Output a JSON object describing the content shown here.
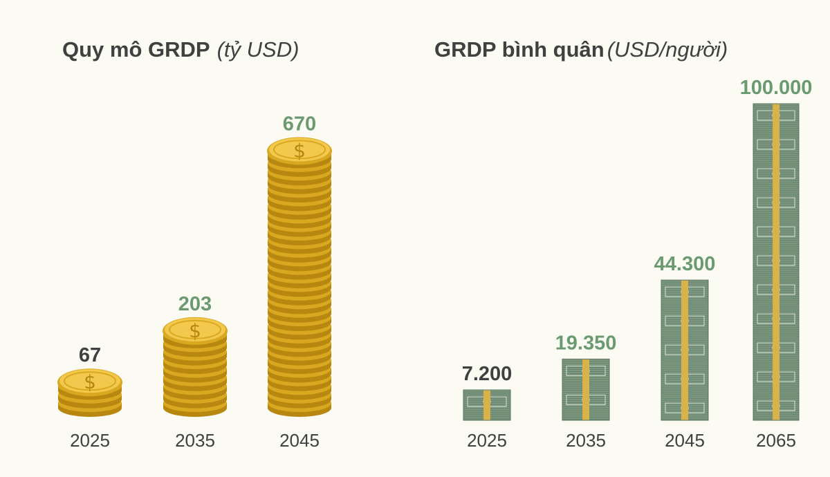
{
  "chart_data": [
    {
      "type": "bar",
      "title": "Quy mô GRDP",
      "unit": "(tỷ USD)",
      "categories": [
        "2025",
        "2035",
        "2045"
      ],
      "values": [
        67,
        203,
        670
      ],
      "value_labels": [
        "67",
        "203",
        "670"
      ],
      "ylim": [
        0,
        670
      ],
      "mark": "coin-stack-icon",
      "grid": false,
      "legend": "none"
    },
    {
      "type": "bar",
      "title": "GRDP bình quân",
      "unit": "(USD/người)",
      "categories": [
        "2025",
        "2035",
        "2045",
        "2065"
      ],
      "values": [
        7200,
        19350,
        44300,
        100000
      ],
      "value_labels": [
        "7.200",
        "19.350",
        "44.300",
        "100.000"
      ],
      "ylim": [
        0,
        100000
      ],
      "mark": "banknote-stack-icon",
      "grid": false,
      "legend": "none"
    }
  ],
  "colors": {
    "background": "#fbfbf4",
    "text_dark": "#3f4040",
    "value_green": "#6b9a70",
    "coin_gold": "#f2c94c",
    "coin_edge": "#d9a820",
    "coin_shadow": "#b8870f",
    "note_green": "#7d9a80",
    "note_dark": "#5a7460",
    "band_gold": "#d9b24a"
  },
  "value_label_colors": {
    "left": [
      "#3f4040",
      "#6b9a70",
      "#6b9a70"
    ],
    "right": [
      "#3f4040",
      "#6b9a70",
      "#6b9a70",
      "#6b9a70"
    ]
  }
}
